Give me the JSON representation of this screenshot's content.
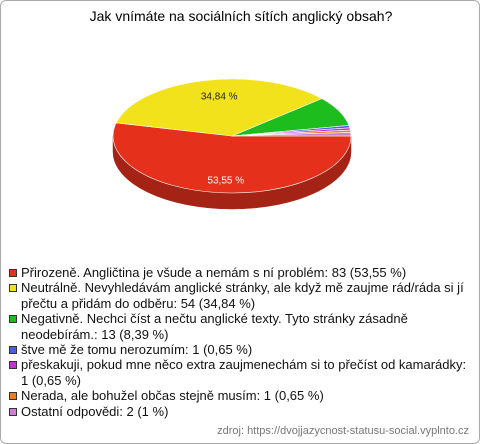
{
  "chart_data": {
    "type": "pie3d",
    "title": "Jak vnímáte na sociálních sítích anglický obsah?",
    "categories": [
      "Přirozeně. Angličtina je všude a nemám s ní problém: 83 (53,55 %)",
      "Neutrálně. Nevyhledávám anglické stránky, ale když mě zaujme rád/ráda si jí přečtu a přidám do odběru: 54 (34,84 %)",
      "Negativně. Nechci číst a nečtu anglické texty. Tyto stránky zásadně neodebírám.: 13 (8,39 %)",
      "štve mě že tomu nerozumím: 1 (0,65 %)",
      "přeskakuji, pokud mne něco extra zaujmenechám si to přečíst od kamarádky: 1 (0,65 %)",
      "Nerada, ale bohužel občas stejně musím: 1 (0,65 %)",
      "Ostatní odpovědi: 2 (1 %)"
    ],
    "values": [
      53.55,
      34.84,
      8.39,
      0.65,
      0.65,
      0.65,
      1
    ],
    "value_labels": [
      "53,55 %",
      "34,84 %",
      null,
      null,
      null,
      null,
      null
    ],
    "colors": [
      "#e5301c",
      "#f2e21c",
      "#1ebd1e",
      "#4a5ee8",
      "#c92fd6",
      "#ee7d1f",
      "#cf7fd1"
    ],
    "source": "zdroj: https://dvojjazycnost-statusu-social.vyplnto.cz"
  }
}
